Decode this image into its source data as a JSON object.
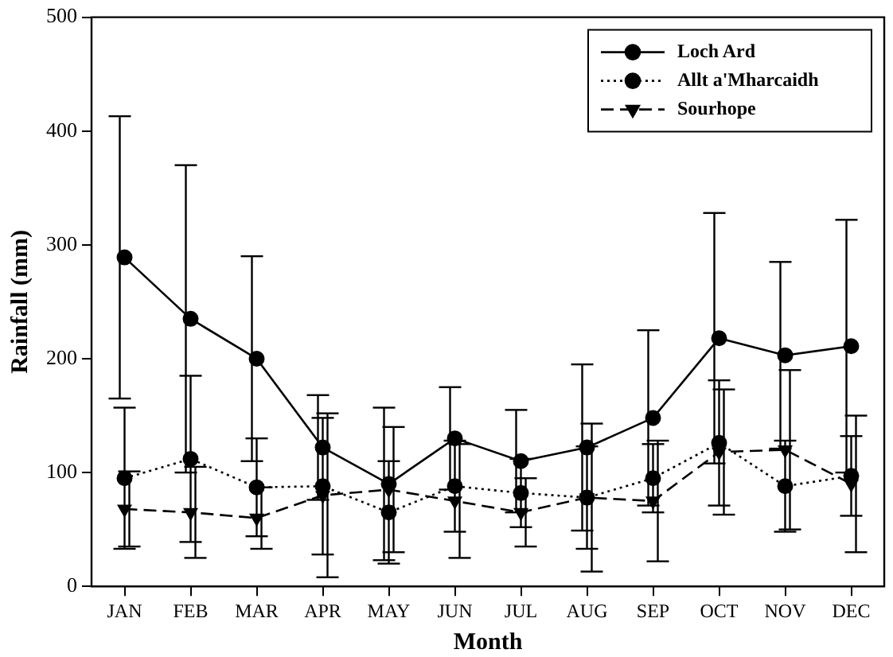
{
  "chart_data": {
    "type": "line",
    "xlabel": "Month",
    "ylabel": "Rainfall (mm)",
    "categories": [
      "JAN",
      "FEB",
      "MAR",
      "APR",
      "MAY",
      "JUN",
      "JUL",
      "AUG",
      "SEP",
      "OCT",
      "NOV",
      "DEC"
    ],
    "series": [
      {
        "name": "Loch Ard",
        "color": "#000000",
        "marker": "circle",
        "line_style": "solid",
        "values": [
          289,
          235,
          200,
          122,
          90,
          130,
          110,
          122,
          148,
          218,
          203,
          211
        ],
        "errors": [
          124,
          135,
          90,
          46,
          67,
          45,
          45,
          73,
          77,
          110,
          82,
          111
        ]
      },
      {
        "name": "Allt a'Mharcaidh",
        "color": "#000000",
        "marker": "circle",
        "line_style": "dotted",
        "values": [
          95,
          112,
          87,
          88,
          65,
          88,
          82,
          78,
          95,
          126,
          88,
          97
        ],
        "errors": [
          62,
          73,
          43,
          60,
          45,
          40,
          30,
          45,
          30,
          55,
          40,
          35
        ]
      },
      {
        "name": "Sourhope",
        "color": "#000000",
        "marker": "triangle",
        "line_style": "dashed",
        "values": [
          68,
          65,
          60,
          80,
          85,
          75,
          65,
          78,
          75,
          118,
          120,
          90
        ],
        "errors": [
          33,
          40,
          27,
          72,
          55,
          50,
          30,
          65,
          53,
          55,
          70,
          60
        ]
      }
    ],
    "ylim": [
      0,
      500
    ],
    "yticks": [
      0,
      100,
      200,
      300,
      400,
      500
    ],
    "grid": false,
    "legend": "top right"
  }
}
